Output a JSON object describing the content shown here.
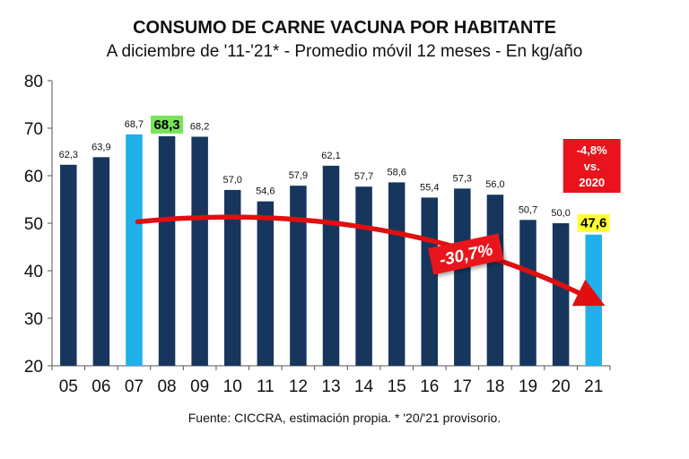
{
  "chart_data": {
    "type": "bar",
    "title": "CONSUMO DE CARNE VACUNA POR HABITANTE",
    "subtitle": "A diciembre de '11-'21* - Promedio móvil 12 meses -  En kg/año",
    "source": "Fuente: CICCRA, estimación propia. * '20/'21 provisorio.",
    "categories": [
      "05",
      "06",
      "07",
      "08",
      "09",
      "10",
      "11",
      "12",
      "13",
      "14",
      "15",
      "16",
      "17",
      "18",
      "19",
      "20",
      "21"
    ],
    "values": [
      62.3,
      63.9,
      68.7,
      68.3,
      68.2,
      57.0,
      54.6,
      57.9,
      62.1,
      57.7,
      58.6,
      55.4,
      57.3,
      56.0,
      50.7,
      50.0,
      47.6
    ],
    "value_labels": [
      "62,3",
      "63,9",
      "68,7",
      "68,3",
      "68,2",
      "57,0",
      "54,6",
      "57,9",
      "62,1",
      "57,7",
      "58,6",
      "55,4",
      "57,3",
      "56,0",
      "50,7",
      "50,0",
      "47,6"
    ],
    "ylim": [
      20,
      80
    ],
    "yticks": [
      20,
      30,
      40,
      50,
      60,
      70,
      80
    ],
    "grid": false,
    "colors": {
      "bar": "#17365d",
      "highlight_bar": "#1fb1eb",
      "arrow": "#e01010",
      "green_label": "#78e35a",
      "yellow_label": "#ffff33",
      "callout": "#e8131c"
    },
    "highlight_indices": [
      2,
      16
    ],
    "boxed_labels": {
      "green": 3,
      "yellow": 16
    },
    "trend_label": "-30,7%",
    "callout_lines": [
      "-4,8%",
      "vs.",
      "2020"
    ]
  }
}
